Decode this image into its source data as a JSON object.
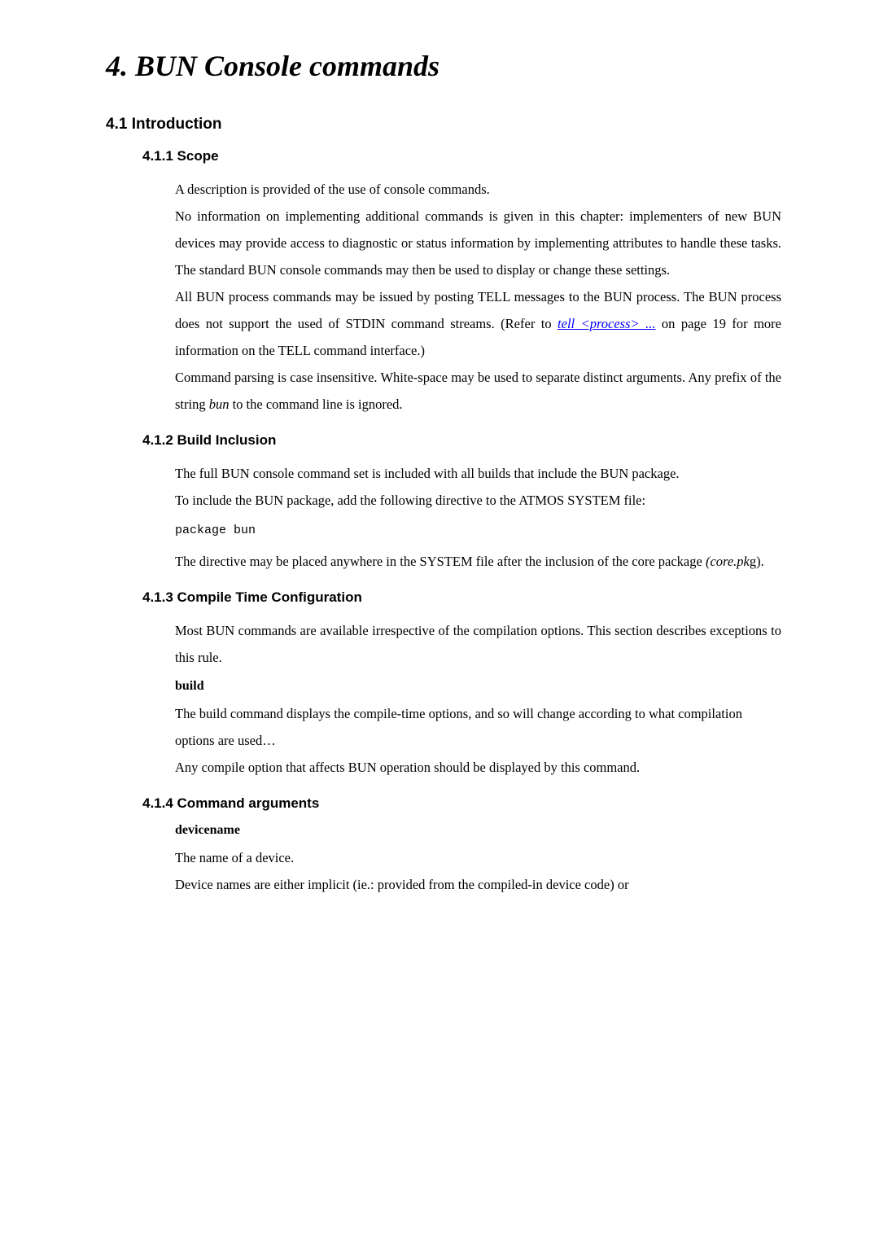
{
  "chapter": {
    "title": "4. BUN Console commands"
  },
  "s1": {
    "heading": "4.1 Introduction"
  },
  "s1_1": {
    "heading": "4.1.1 Scope",
    "p1": "A description is provided of the use of console commands.",
    "p2": "No information on implementing additional commands is given in this chapter: implementers of new BUN devices may provide access to diagnostic or status information by implementing attributes to handle these tasks. The standard BUN console commands may then be used to display or change these settings.",
    "p3a": "All BUN process commands may be issued by posting TELL messages to the BUN process. The BUN process does not support the used of STDIN command streams. (Refer to ",
    "link_text": "tell <process> ...",
    "p3b": " on page 19 for more information on the TELL command interface.)",
    "p4a": "Command parsing is case insensitive. White-space may be used to separate distinct arguments. Any prefix of the string ",
    "p4_italic": "bun",
    "p4b": " to the command line is ignored."
  },
  "s1_2": {
    "heading": "4.1.2 Build Inclusion",
    "p1": "The full BUN console command set is included with all builds that include the BUN package.",
    "p2": "To include the BUN package, add the following directive to the ATMOS SYSTEM file:",
    "code1": "package bun",
    "p3a": "The directive may be placed anywhere in the SYSTEM file after the inclusion of the core package ",
    "p3_italic": "(core.pk",
    "p3b": "g)."
  },
  "s1_3": {
    "heading": "4.1.3 Compile Time Configuration",
    "p1": "Most BUN commands are available irrespective of the compilation options. This section describes exceptions to this rule.",
    "h3": "build",
    "p2": "The build command displays the compile-time options, and so will change according to what compilation options are used…",
    "p3": "Any compile option that affects BUN operation should be displayed by this command."
  },
  "s1_4": {
    "heading": "4.1.4 Command arguments",
    "h3": "devicename",
    "p1": "The name of a device.",
    "p2": "Device names are either implicit (ie.: provided from the compiled-in device code) or"
  }
}
